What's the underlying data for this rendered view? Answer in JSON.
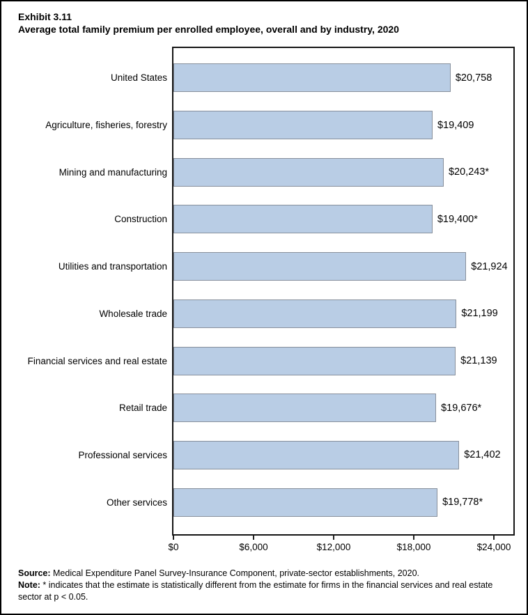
{
  "title": {
    "exhibit_number": "Exhibit 3.11",
    "subtitle": "Average total family premium per enrolled employee, overall and by industry, 2020"
  },
  "chart_data": {
    "type": "bar",
    "orientation": "horizontal",
    "title": "Average total family premium per enrolled employee, overall and by industry, 2020",
    "xlabel": "",
    "ylabel": "",
    "grid": false,
    "legend": false,
    "xlim": [
      0,
      25700
    ],
    "categories": [
      "United States",
      "Agriculture, fisheries, forestry",
      "Mining and manufacturing",
      "Construction",
      "Utilities and transportation",
      "Wholesale trade",
      "Financial services and real estate",
      "Retail trade",
      "Professional services",
      "Other services"
    ],
    "values": [
      20758,
      19409,
      20243,
      19400,
      21924,
      21199,
      21139,
      19676,
      21402,
      19778
    ],
    "value_labels": [
      "$20,758",
      "$19,409",
      "$20,243*",
      "$19,400*",
      "$21,924",
      "$21,199",
      "$21,139",
      "$19,676*",
      "$21,402",
      "$19,778*"
    ],
    "x_tick_values": [
      0,
      6000,
      12000,
      18000,
      24000
    ],
    "x_tick_labels": [
      "$0",
      "$6,000",
      "$12,000",
      "$18,000",
      "$24,000"
    ],
    "bar_color": "#b9cde5",
    "bar_border_color": "#878f9b"
  },
  "footer": {
    "source_label": "Source:",
    "source_text": " Medical Expenditure Panel Survey-Insurance Component, private-sector establishments, 2020.",
    "note_label": "Note:",
    "note_text": "  * indicates that the estimate is statistically different from the estimate for firms in the financial services and real estate sector at p < 0.05."
  }
}
